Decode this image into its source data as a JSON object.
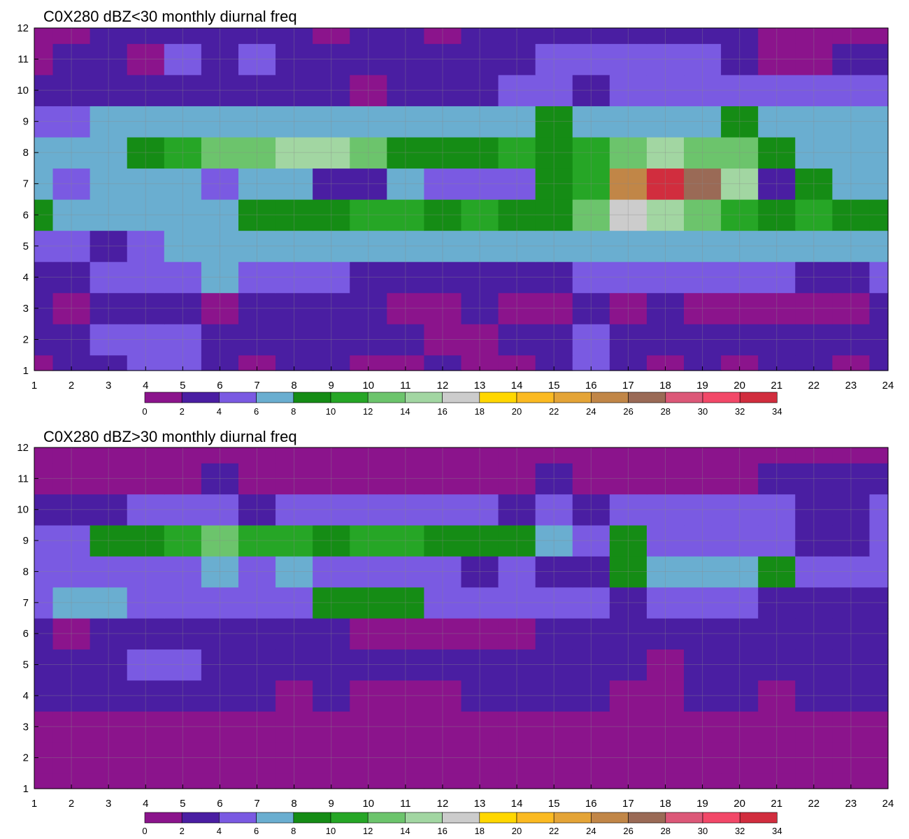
{
  "palette": {
    "levels": [
      0,
      2,
      4,
      6,
      8,
      10,
      12,
      14,
      16,
      18,
      20,
      22,
      24,
      26,
      28,
      30,
      32,
      34
    ],
    "colors": [
      "#8b148c",
      "#4a1ea2",
      "#7a5ae2",
      "#6aaed0",
      "#158c15",
      "#26a626",
      "#6cc46c",
      "#a2d6a2",
      "#cccccc",
      "#ffd700",
      "#fbba22",
      "#e4a437",
      "#c18647",
      "#9a6a56",
      "#dc5878",
      "#f24868",
      "#d12d3e"
    ],
    "contour_line": "#f0a020",
    "grid": "#8a8a8a"
  },
  "chart_data": [
    {
      "type": "heatmap",
      "title": "C0X280 dBZ<30 monthly diurnal freq",
      "xlabel": "",
      "ylabel": "",
      "xlim": [
        1,
        24
      ],
      "ylim": [
        1,
        12
      ],
      "x_ticks": [
        "1",
        "2",
        "3",
        "4",
        "5",
        "6",
        "7",
        "8",
        "9",
        "10",
        "11",
        "12",
        "13",
        "14",
        "15",
        "16",
        "17",
        "18",
        "19",
        "20",
        "21",
        "22",
        "23",
        "24"
      ],
      "y_ticks": [
        "1",
        "2",
        "3",
        "4",
        "5",
        "6",
        "7",
        "8",
        "9",
        "10",
        "11",
        "12"
      ],
      "colorbar_ticks": [
        "0",
        "2",
        "4",
        "6",
        "8",
        "10",
        "12",
        "14",
        "16",
        "18",
        "20",
        "22",
        "24",
        "26",
        "28",
        "30",
        "32",
        "34"
      ],
      "z": [
        [
          1,
          2,
          3,
          4,
          4,
          2,
          1,
          3,
          2,
          1,
          1,
          2,
          1,
          1,
          3,
          4,
          2,
          1,
          2,
          1,
          2,
          2,
          1,
          2
        ],
        [
          2,
          3,
          4,
          4,
          4,
          3,
          2,
          2,
          3,
          3,
          2,
          1,
          1,
          2,
          3,
          4,
          3,
          2,
          2,
          2,
          3,
          2,
          2,
          2
        ],
        [
          2,
          1,
          3,
          3,
          3,
          1,
          2,
          3,
          3,
          3,
          1,
          1,
          2,
          1,
          1,
          2,
          1,
          3,
          1,
          1,
          1,
          1,
          1,
          3
        ],
        [
          3,
          3,
          4,
          5,
          5,
          6,
          4,
          4,
          4,
          3,
          3,
          2,
          2,
          2,
          3,
          4,
          4,
          4,
          4,
          4,
          4,
          3,
          3,
          4
        ],
        [
          5,
          5,
          3,
          4,
          6,
          7,
          7,
          7,
          7,
          7,
          6,
          6,
          6,
          6,
          7,
          7,
          7,
          6,
          6,
          6,
          6,
          7,
          6,
          6
        ],
        [
          8,
          6,
          7,
          7,
          7,
          7,
          9,
          9,
          9,
          11,
          10,
          9,
          11,
          9,
          9,
          13,
          16,
          15,
          13,
          10,
          9,
          11,
          8,
          8
        ],
        [
          7,
          4,
          7,
          7,
          7,
          4,
          7,
          7,
          3,
          3,
          7,
          5,
          4,
          5,
          8,
          10,
          24,
          33,
          26,
          14,
          3,
          8,
          6,
          7
        ],
        [
          6,
          6,
          7,
          8,
          10,
          12,
          13,
          14,
          15,
          12,
          9,
          9,
          9,
          10,
          9,
          10,
          13,
          15,
          13,
          12,
          9,
          7,
          6,
          6
        ],
        [
          5,
          5,
          6,
          6,
          6,
          6,
          6,
          7,
          7,
          7,
          7,
          7,
          7,
          7,
          8,
          7,
          6,
          7,
          7,
          8,
          7,
          6,
          6,
          6
        ],
        [
          3,
          3,
          3,
          3,
          3,
          3,
          3,
          3,
          3,
          1,
          3,
          3,
          3,
          4,
          5,
          3,
          5,
          5,
          5,
          5,
          5,
          5,
          5,
          5
        ],
        [
          1,
          2,
          2,
          1,
          5,
          3,
          4,
          3,
          3,
          3,
          3,
          3,
          3,
          3,
          5,
          5,
          5,
          5,
          5,
          3,
          1,
          1,
          3,
          3
        ],
        [
          1,
          1,
          3,
          3,
          3,
          3,
          3,
          3,
          1,
          3,
          3,
          1,
          3,
          3,
          3,
          3,
          3,
          3,
          3,
          3,
          1,
          1,
          1,
          1
        ]
      ]
    },
    {
      "type": "heatmap",
      "title": "C0X280 dBZ>30 monthly diurnal freq",
      "xlabel": "",
      "ylabel": "",
      "xlim": [
        1,
        24
      ],
      "ylim": [
        1,
        12
      ],
      "x_ticks": [
        "1",
        "2",
        "3",
        "4",
        "5",
        "6",
        "7",
        "8",
        "9",
        "10",
        "11",
        "12",
        "13",
        "14",
        "15",
        "16",
        "17",
        "18",
        "19",
        "20",
        "21",
        "22",
        "23",
        "24"
      ],
      "y_ticks": [
        "1",
        "2",
        "3",
        "4",
        "5",
        "6",
        "7",
        "8",
        "9",
        "10",
        "11",
        "12"
      ],
      "colorbar_ticks": [
        "0",
        "2",
        "4",
        "6",
        "8",
        "10",
        "12",
        "14",
        "16",
        "18",
        "20",
        "22",
        "24",
        "26",
        "28",
        "30",
        "32",
        "34"
      ],
      "z": [
        [
          1,
          1,
          1,
          1,
          1,
          1,
          1,
          1,
          1,
          1,
          1,
          1,
          1,
          1,
          1,
          1,
          1,
          1,
          1,
          1,
          1,
          1,
          1,
          1
        ],
        [
          1,
          1,
          1,
          1,
          1,
          1,
          1,
          1,
          1,
          1,
          1,
          1,
          1,
          1,
          1,
          1,
          1,
          1,
          1,
          1,
          1,
          1,
          1,
          1
        ],
        [
          1,
          1,
          1,
          1,
          1,
          1,
          1,
          1,
          1,
          1,
          1,
          1,
          1,
          1,
          1,
          1,
          1,
          1,
          1,
          1,
          1,
          1,
          1,
          1
        ],
        [
          3,
          3,
          3,
          3,
          3,
          3,
          3,
          1,
          3,
          1,
          1,
          1,
          3,
          3,
          3,
          3,
          1,
          1,
          3,
          3,
          1,
          3,
          3,
          3
        ],
        [
          3,
          3,
          3,
          5,
          5,
          3,
          3,
          3,
          3,
          3,
          3,
          3,
          3,
          3,
          3,
          3,
          3,
          1,
          3,
          3,
          3,
          3,
          3,
          3
        ],
        [
          3,
          1,
          3,
          3,
          3,
          3,
          3,
          3,
          3,
          1,
          1,
          1,
          1,
          1,
          3,
          3,
          3,
          3,
          3,
          3,
          3,
          3,
          3,
          3
        ],
        [
          5,
          7,
          7,
          5,
          5,
          5,
          5,
          5,
          9,
          9,
          9,
          5,
          5,
          5,
          5,
          5,
          3,
          5,
          5,
          5,
          3,
          3,
          3,
          3
        ],
        [
          5,
          5,
          5,
          5,
          5,
          7,
          5,
          7,
          5,
          5,
          5,
          5,
          3,
          5,
          3,
          3,
          9,
          7,
          7,
          7,
          9,
          5,
          5,
          5
        ],
        [
          5,
          5,
          9,
          9,
          11,
          12,
          11,
          11,
          9,
          11,
          11,
          9,
          9,
          9,
          7,
          5,
          9,
          5,
          5,
          5,
          5,
          3,
          3,
          5
        ],
        [
          3,
          3,
          3,
          5,
          5,
          5,
          3,
          5,
          5,
          5,
          5,
          5,
          5,
          3,
          5,
          3,
          5,
          5,
          5,
          5,
          5,
          3,
          3,
          5
        ],
        [
          1,
          1,
          1,
          1,
          1,
          3,
          1,
          1,
          1,
          1,
          1,
          1,
          1,
          1,
          3,
          1,
          1,
          1,
          1,
          1,
          3,
          3,
          3,
          3
        ],
        [
          1,
          1,
          1,
          1,
          1,
          1,
          1,
          1,
          1,
          1,
          1,
          1,
          1,
          1,
          1,
          1,
          1,
          1,
          1,
          1,
          1,
          1,
          1,
          1
        ]
      ]
    }
  ]
}
